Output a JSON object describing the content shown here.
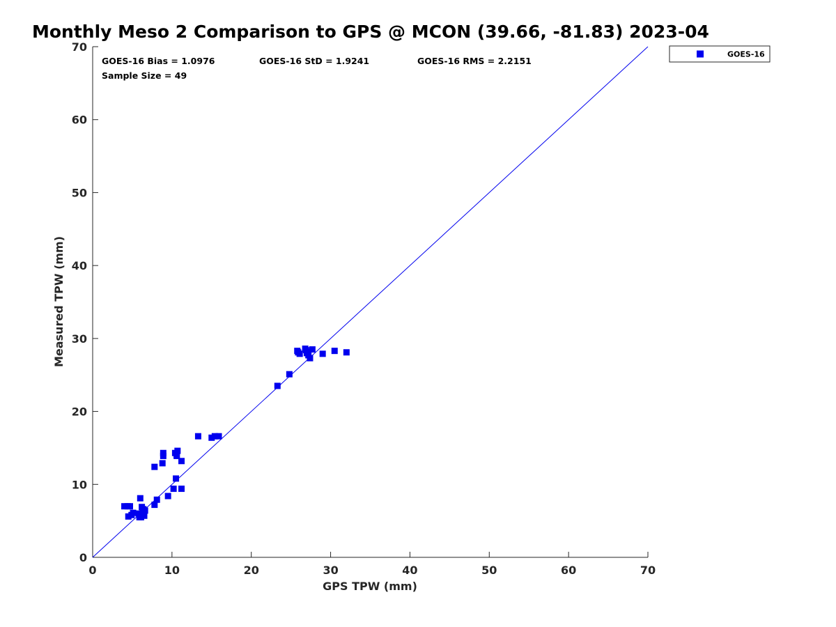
{
  "chart_data": {
    "type": "scatter",
    "title": "Monthly Meso 2 Comparison to GPS @ MCON (39.66, -81.83) 2023-04",
    "xlabel": "GPS TPW (mm)",
    "ylabel": "Measured TPW (mm)",
    "xlim": [
      0,
      70
    ],
    "ylim": [
      0,
      70
    ],
    "xticks": [
      "0",
      "10",
      "20",
      "30",
      "40",
      "50",
      "60",
      "70"
    ],
    "yticks": [
      "0",
      "10",
      "20",
      "30",
      "40",
      "50",
      "60",
      "70"
    ],
    "grid": false,
    "legend_position": "outside-top-right",
    "reference_line": {
      "type": "one-to-one",
      "from": [
        0,
        0
      ],
      "to": [
        70,
        70
      ],
      "color": "#0000ee"
    },
    "stats": {
      "bias": "GOES-16 Bias = 1.0976",
      "std": "GOES-16 StD = 1.9241",
      "rms": "GOES-16 RMS = 2.2151",
      "sample_size": "Sample Size = 49"
    },
    "series": [
      {
        "name": "GOES-16",
        "color": "#0000ee",
        "marker": "square",
        "points": [
          [
            4.0,
            7.0
          ],
          [
            4.4,
            7.0
          ],
          [
            4.7,
            7.0
          ],
          [
            4.5,
            5.6
          ],
          [
            4.9,
            5.8
          ],
          [
            5.1,
            6.1
          ],
          [
            5.9,
            5.5
          ],
          [
            6.1,
            5.5
          ],
          [
            5.8,
            6.0
          ],
          [
            6.3,
            6.2
          ],
          [
            6.5,
            5.7
          ],
          [
            6.2,
            6.9
          ],
          [
            6.4,
            6.6
          ],
          [
            6.0,
            8.1
          ],
          [
            7.8,
            7.2
          ],
          [
            8.1,
            7.9
          ],
          [
            7.8,
            12.4
          ],
          [
            8.8,
            12.9
          ],
          [
            8.9,
            13.9
          ],
          [
            8.9,
            14.3
          ],
          [
            9.5,
            8.4
          ],
          [
            10.2,
            9.4
          ],
          [
            10.4,
            14.3
          ],
          [
            10.6,
            13.9
          ],
          [
            10.7,
            14.6
          ],
          [
            10.5,
            10.8
          ],
          [
            11.2,
            9.4
          ],
          [
            11.2,
            13.2
          ],
          [
            13.3,
            16.6
          ],
          [
            15.0,
            16.4
          ],
          [
            15.4,
            16.6
          ],
          [
            15.9,
            16.6
          ],
          [
            23.3,
            23.5
          ],
          [
            24.8,
            25.1
          ],
          [
            25.8,
            28.3
          ],
          [
            26.1,
            27.9
          ],
          [
            26.8,
            28.6
          ],
          [
            27.0,
            28.0
          ],
          [
            27.2,
            27.7
          ],
          [
            27.4,
            27.3
          ],
          [
            27.7,
            28.5
          ],
          [
            29.0,
            27.9
          ],
          [
            30.5,
            28.3
          ],
          [
            32.0,
            28.1
          ],
          [
            26.9,
            28.4
          ],
          [
            25.9,
            28.1
          ],
          [
            6.6,
            6.4
          ],
          [
            10.6,
            14.0
          ],
          [
            27.1,
            28.2
          ]
        ]
      }
    ]
  }
}
